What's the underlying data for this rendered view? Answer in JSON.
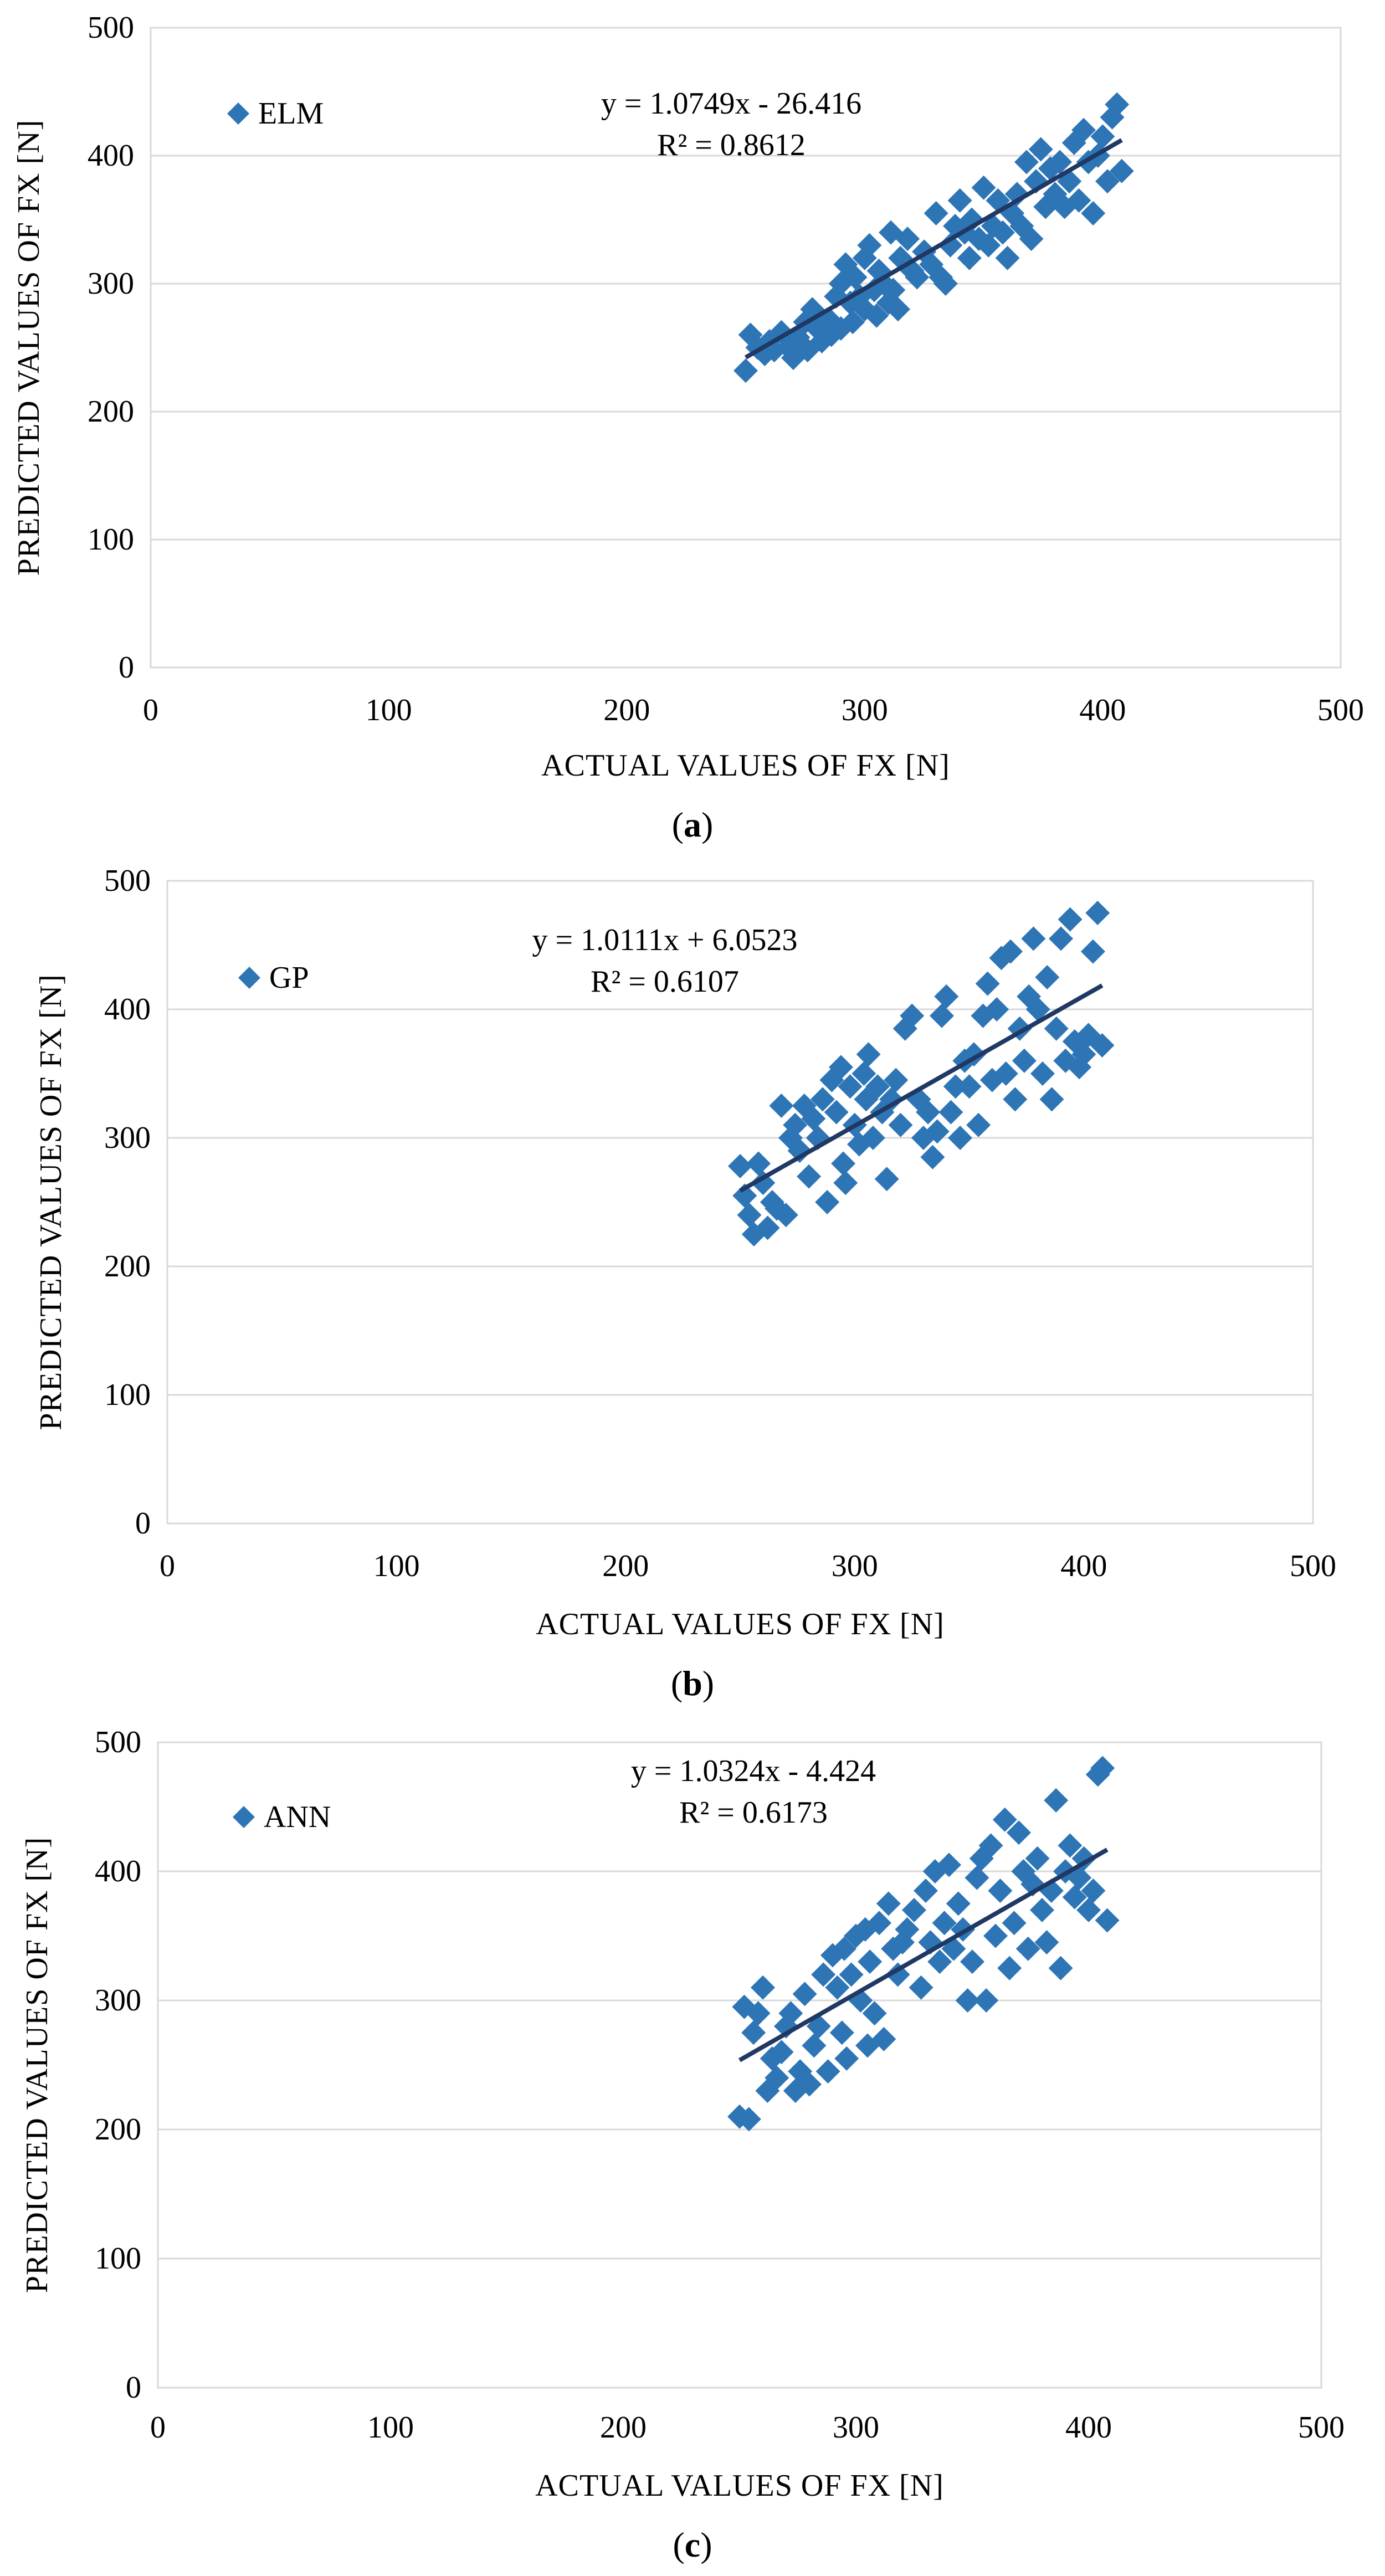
{
  "chart_data": [
    {
      "type": "scatter",
      "caption": "(a)",
      "caption_letter": "a",
      "xlabel": "ACTUAL VALUES OF FX [N]",
      "ylabel": "PREDICTED VALUES OF FX [N]",
      "xlim": [
        0,
        500
      ],
      "ylim": [
        0,
        500
      ],
      "xticks": [
        0,
        100,
        200,
        300,
        400,
        500
      ],
      "yticks": [
        0,
        100,
        200,
        300,
        400,
        500
      ],
      "grid": true,
      "legend": "ELM",
      "equation": "y = 1.0749x - 26.416",
      "r2": "R² = 0.8612",
      "trendline": {
        "slope": 1.0749,
        "intercept": -26.416,
        "x_range": [
          250,
          408
        ]
      },
      "color": "#2e75b6",
      "line_color": "#1f3864",
      "points": [
        [
          250,
          232
        ],
        [
          252,
          260
        ],
        [
          255,
          250
        ],
        [
          258,
          245
        ],
        [
          260,
          255
        ],
        [
          262,
          248
        ],
        [
          265,
          262
        ],
        [
          268,
          250
        ],
        [
          270,
          242
        ],
        [
          272,
          258
        ],
        [
          275,
          270
        ],
        [
          276,
          248
        ],
        [
          278,
          280
        ],
        [
          280,
          265
        ],
        [
          282,
          255
        ],
        [
          285,
          272
        ],
        [
          286,
          260
        ],
        [
          288,
          290
        ],
        [
          290,
          300
        ],
        [
          290,
          265
        ],
        [
          292,
          315
        ],
        [
          294,
          285
        ],
        [
          295,
          270
        ],
        [
          296,
          305
        ],
        [
          298,
          290
        ],
        [
          300,
          320
        ],
        [
          300,
          280
        ],
        [
          302,
          330
        ],
        [
          304,
          295
        ],
        [
          305,
          275
        ],
        [
          306,
          310
        ],
        [
          308,
          300
        ],
        [
          310,
          285
        ],
        [
          311,
          340
        ],
        [
          312,
          295
        ],
        [
          314,
          280
        ],
        [
          315,
          320
        ],
        [
          318,
          335
        ],
        [
          320,
          310
        ],
        [
          322,
          305
        ],
        [
          325,
          325
        ],
        [
          328,
          315
        ],
        [
          330,
          355
        ],
        [
          332,
          305
        ],
        [
          334,
          300
        ],
        [
          336,
          330
        ],
        [
          338,
          345
        ],
        [
          340,
          365
        ],
        [
          342,
          340
        ],
        [
          344,
          320
        ],
        [
          345,
          350
        ],
        [
          348,
          335
        ],
        [
          350,
          375
        ],
        [
          352,
          330
        ],
        [
          354,
          345
        ],
        [
          356,
          365
        ],
        [
          358,
          340
        ],
        [
          360,
          320
        ],
        [
          362,
          355
        ],
        [
          364,
          370
        ],
        [
          366,
          345
        ],
        [
          368,
          395
        ],
        [
          370,
          335
        ],
        [
          372,
          380
        ],
        [
          374,
          405
        ],
        [
          376,
          360
        ],
        [
          378,
          390
        ],
        [
          380,
          370
        ],
        [
          382,
          395
        ],
        [
          384,
          360
        ],
        [
          386,
          380
        ],
        [
          388,
          410
        ],
        [
          390,
          365
        ],
        [
          392,
          420
        ],
        [
          394,
          395
        ],
        [
          396,
          355
        ],
        [
          398,
          400
        ],
        [
          400,
          415
        ],
        [
          402,
          380
        ],
        [
          404,
          430
        ],
        [
          406,
          440
        ],
        [
          408,
          388
        ]
      ]
    },
    {
      "type": "scatter",
      "caption": "(b)",
      "caption_letter": "b",
      "xlabel": "ACTUAL VALUES OF FX [N]",
      "ylabel": "PREDICTED VALUES OF FX [N]",
      "xlim": [
        0,
        500
      ],
      "ylim": [
        0,
        500
      ],
      "xticks": [
        0,
        100,
        200,
        300,
        400,
        500
      ],
      "yticks": [
        0,
        100,
        200,
        300,
        400,
        500
      ],
      "grid": true,
      "legend": "GP",
      "equation": "y = 1.0111x + 6.0523",
      "r2": "R² = 0.6107",
      "trendline": {
        "slope": 1.0111,
        "intercept": 6.0523,
        "x_range": [
          250,
          408
        ]
      },
      "color": "#2e75b6",
      "line_color": "#1f3864",
      "points": [
        [
          250,
          278
        ],
        [
          252,
          255
        ],
        [
          254,
          240
        ],
        [
          256,
          225
        ],
        [
          258,
          280
        ],
        [
          260,
          265
        ],
        [
          262,
          230
        ],
        [
          264,
          250
        ],
        [
          266,
          245
        ],
        [
          268,
          325
        ],
        [
          270,
          240
        ],
        [
          272,
          300
        ],
        [
          274,
          310
        ],
        [
          276,
          290
        ],
        [
          278,
          325
        ],
        [
          280,
          270
        ],
        [
          282,
          315
        ],
        [
          284,
          300
        ],
        [
          286,
          330
        ],
        [
          288,
          250
        ],
        [
          290,
          345
        ],
        [
          292,
          320
        ],
        [
          294,
          355
        ],
        [
          295,
          280
        ],
        [
          296,
          265
        ],
        [
          298,
          340
        ],
        [
          300,
          310
        ],
        [
          302,
          295
        ],
        [
          304,
          350
        ],
        [
          305,
          330
        ],
        [
          306,
          365
        ],
        [
          308,
          300
        ],
        [
          310,
          340
        ],
        [
          312,
          320
        ],
        [
          314,
          268
        ],
        [
          316,
          330
        ],
        [
          318,
          345
        ],
        [
          320,
          310
        ],
        [
          322,
          385
        ],
        [
          325,
          395
        ],
        [
          328,
          330
        ],
        [
          330,
          300
        ],
        [
          332,
          320
        ],
        [
          334,
          285
        ],
        [
          336,
          305
        ],
        [
          338,
          395
        ],
        [
          340,
          410
        ],
        [
          342,
          320
        ],
        [
          344,
          340
        ],
        [
          346,
          300
        ],
        [
          348,
          360
        ],
        [
          350,
          340
        ],
        [
          352,
          365
        ],
        [
          354,
          310
        ],
        [
          356,
          395
        ],
        [
          358,
          420
        ],
        [
          360,
          345
        ],
        [
          362,
          400
        ],
        [
          364,
          440
        ],
        [
          366,
          350
        ],
        [
          368,
          445
        ],
        [
          370,
          330
        ],
        [
          372,
          385
        ],
        [
          374,
          360
        ],
        [
          376,
          410
        ],
        [
          378,
          455
        ],
        [
          380,
          400
        ],
        [
          382,
          350
        ],
        [
          384,
          425
        ],
        [
          386,
          330
        ],
        [
          388,
          385
        ],
        [
          390,
          455
        ],
        [
          392,
          360
        ],
        [
          394,
          470
        ],
        [
          396,
          375
        ],
        [
          398,
          355
        ],
        [
          400,
          365
        ],
        [
          402,
          380
        ],
        [
          404,
          445
        ],
        [
          406,
          475
        ],
        [
          408,
          372
        ]
      ]
    },
    {
      "type": "scatter",
      "caption": "(c)",
      "caption_letter": "c",
      "xlabel": "ACTUAL VALUES OF FX [N]",
      "ylabel": "PREDICTED VALUES OF FX [N]",
      "xlim": [
        0,
        500
      ],
      "ylim": [
        0,
        500
      ],
      "xticks": [
        0,
        100,
        200,
        300,
        400,
        500
      ],
      "yticks": [
        0,
        100,
        200,
        300,
        400,
        500
      ],
      "grid": true,
      "legend": "ANN",
      "equation": "y = 1.0324x - 4.424",
      "r2": "R² = 0.6173",
      "trendline": {
        "slope": 1.0324,
        "intercept": -4.424,
        "x_range": [
          250,
          408
        ]
      },
      "color": "#2e75b6",
      "line_color": "#1f3864",
      "points": [
        [
          250,
          210
        ],
        [
          252,
          295
        ],
        [
          254,
          208
        ],
        [
          256,
          275
        ],
        [
          258,
          290
        ],
        [
          260,
          310
        ],
        [
          262,
          230
        ],
        [
          264,
          255
        ],
        [
          266,
          240
        ],
        [
          268,
          260
        ],
        [
          270,
          280
        ],
        [
          272,
          290
        ],
        [
          274,
          230
        ],
        [
          276,
          245
        ],
        [
          278,
          305
        ],
        [
          280,
          235
        ],
        [
          282,
          265
        ],
        [
          284,
          280
        ],
        [
          286,
          320
        ],
        [
          288,
          245
        ],
        [
          290,
          335
        ],
        [
          292,
          310
        ],
        [
          294,
          275
        ],
        [
          295,
          340
        ],
        [
          296,
          255
        ],
        [
          298,
          320
        ],
        [
          300,
          350
        ],
        [
          302,
          300
        ],
        [
          304,
          355
        ],
        [
          305,
          265
        ],
        [
          306,
          330
        ],
        [
          308,
          290
        ],
        [
          310,
          360
        ],
        [
          312,
          270
        ],
        [
          314,
          375
        ],
        [
          316,
          340
        ],
        [
          318,
          320
        ],
        [
          320,
          345
        ],
        [
          322,
          355
        ],
        [
          325,
          370
        ],
        [
          328,
          310
        ],
        [
          330,
          385
        ],
        [
          332,
          345
        ],
        [
          334,
          400
        ],
        [
          336,
          330
        ],
        [
          338,
          360
        ],
        [
          340,
          405
        ],
        [
          342,
          340
        ],
        [
          344,
          375
        ],
        [
          346,
          355
        ],
        [
          348,
          300
        ],
        [
          350,
          330
        ],
        [
          352,
          395
        ],
        [
          354,
          410
        ],
        [
          356,
          300
        ],
        [
          358,
          420
        ],
        [
          360,
          350
        ],
        [
          362,
          385
        ],
        [
          364,
          440
        ],
        [
          366,
          325
        ],
        [
          368,
          360
        ],
        [
          370,
          430
        ],
        [
          372,
          400
        ],
        [
          374,
          340
        ],
        [
          376,
          390
        ],
        [
          378,
          410
        ],
        [
          380,
          370
        ],
        [
          382,
          345
        ],
        [
          384,
          385
        ],
        [
          386,
          455
        ],
        [
          388,
          325
        ],
        [
          390,
          400
        ],
        [
          392,
          420
        ],
        [
          394,
          380
        ],
        [
          396,
          395
        ],
        [
          398,
          410
        ],
        [
          400,
          370
        ],
        [
          402,
          385
        ],
        [
          404,
          475
        ],
        [
          406,
          480
        ],
        [
          408,
          362
        ]
      ]
    }
  ]
}
